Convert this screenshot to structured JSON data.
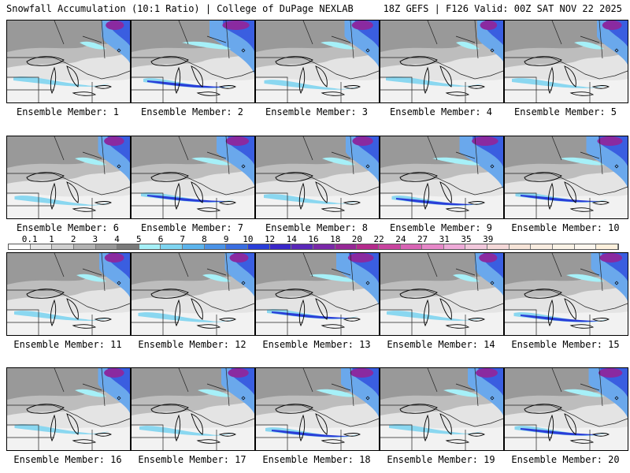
{
  "header": {
    "title": "Snowfall Accumulation (10:1 Ratio) | College of DuPage NEXLAB",
    "run_info": "18Z GEFS | F126 Valid: 00Z SAT NOV 22 2025"
  },
  "member_label_prefix": "Ensemble Member: ",
  "members": [
    {
      "number": "1"
    },
    {
      "number": "2"
    },
    {
      "number": "3"
    },
    {
      "number": "4"
    },
    {
      "number": "5"
    },
    {
      "number": "6"
    },
    {
      "number": "7"
    },
    {
      "number": "8"
    },
    {
      "number": "9"
    },
    {
      "number": "10"
    },
    {
      "number": "11"
    },
    {
      "number": "12"
    },
    {
      "number": "13"
    },
    {
      "number": "14"
    },
    {
      "number": "15"
    },
    {
      "number": "16"
    },
    {
      "number": "17"
    },
    {
      "number": "18"
    },
    {
      "number": "19"
    },
    {
      "number": "20"
    }
  ],
  "scale": {
    "labels": [
      "0.1",
      "1",
      "2",
      "3",
      "4",
      "5",
      "6",
      "7",
      "8",
      "9",
      "10",
      "12",
      "14",
      "16",
      "18",
      "20",
      "22",
      "24",
      "27",
      "31",
      "35",
      "39"
    ],
    "colors": [
      "#ffffff",
      "#e6e6e6",
      "#cfcfcf",
      "#b2b2b2",
      "#989898",
      "#7a7a7a",
      "#a6f0f8",
      "#7ed4f0",
      "#5cb4ec",
      "#4a92e6",
      "#3a6ee0",
      "#2a3ed8",
      "#3a28c8",
      "#5a28b8",
      "#7a28a8",
      "#962896",
      "#b42c8c",
      "#c8449e",
      "#d864b4",
      "#e688c8",
      "#eeaad8",
      "#f2c8dc",
      "#f4d8d8",
      "#f6e4d8",
      "#f8ece0",
      "#faf2e6",
      "#fcf6ee",
      "#fdf0dc"
    ]
  }
}
